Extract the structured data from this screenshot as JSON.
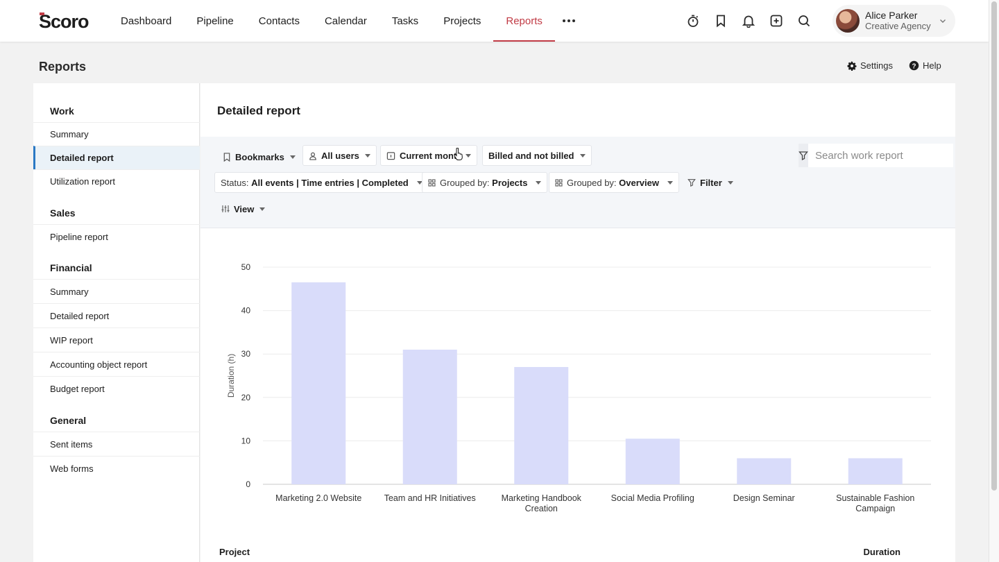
{
  "nav": {
    "items": [
      {
        "label": "Dashboard",
        "active": false
      },
      {
        "label": "Pipeline",
        "active": false
      },
      {
        "label": "Contacts",
        "active": false
      },
      {
        "label": "Calendar",
        "active": false
      },
      {
        "label": "Tasks",
        "active": false
      },
      {
        "label": "Projects",
        "active": false
      },
      {
        "label": "Reports",
        "active": true
      }
    ],
    "icons": [
      "timer-icon",
      "bookmark-icon",
      "bell-icon",
      "add-icon",
      "search-icon"
    ],
    "user": {
      "name": "Alice Parker",
      "org": "Creative Agency"
    },
    "accent_color": "#c13b45"
  },
  "page": {
    "title": "Reports",
    "settings_label": "Settings",
    "help_label": "Help"
  },
  "sidebar": {
    "groups": [
      {
        "label": "Work",
        "items": [
          "Summary",
          "Detailed report",
          "Utilization report"
        ]
      },
      {
        "label": "Sales",
        "items": [
          "Pipeline report"
        ]
      },
      {
        "label": "Financial",
        "items": [
          "Summary",
          "Detailed report",
          "WIP report",
          "Accounting object report",
          "Budget report"
        ]
      },
      {
        "label": "General",
        "items": [
          "Sent items",
          "Web forms"
        ]
      }
    ],
    "active_item": "Detailed report"
  },
  "main": {
    "title": "Detailed report",
    "filters": {
      "bookmarks": "Bookmarks",
      "users": "All users",
      "period": "Current month",
      "billing": "Billed and not billed",
      "status_prefix": "Status:",
      "status_value": "All events | Time entries | Completed",
      "group1_prefix": "Grouped by:",
      "group1_value": "Projects",
      "group2_prefix": "Grouped by:",
      "group2_value": "Overview",
      "filter": "Filter",
      "view": "View"
    },
    "search_placeholder": "Search work report",
    "table_headers": {
      "project": "Project",
      "duration": "Duration"
    }
  },
  "chart_data": {
    "type": "bar",
    "categories": [
      "Marketing 2.0 Website",
      "Team and HR Initiatives",
      "Marketing Handbook Creation",
      "Social Media Profiling",
      "Design Seminar",
      "Sustainable Fashion Campaign"
    ],
    "category_lines": [
      [
        "Marketing 2.0 Website"
      ],
      [
        "Team and HR Initiatives"
      ],
      [
        "Marketing Handbook",
        "Creation"
      ],
      [
        "Social Media Profiling"
      ],
      [
        "Design Seminar"
      ],
      [
        "Sustainable Fashion",
        "Campaign"
      ]
    ],
    "values": [
      46.5,
      31,
      27,
      10.5,
      6,
      6
    ],
    "ylabel": "Duration (h)",
    "ylim": [
      0,
      50
    ],
    "yticks": [
      0,
      10,
      20,
      30,
      40,
      50
    ],
    "bar_color": "#d9dcfa",
    "grid": true
  }
}
